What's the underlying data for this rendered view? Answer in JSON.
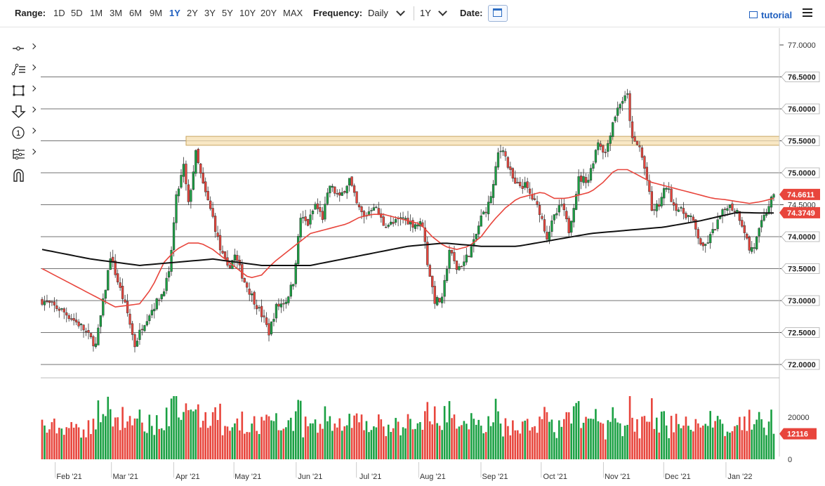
{
  "toolbar": {
    "range_label": "Range:",
    "ranges": [
      "1D",
      "5D",
      "1M",
      "3M",
      "6M",
      "9M",
      "1Y",
      "2Y",
      "3Y",
      "5Y",
      "10Y",
      "20Y",
      "MAX"
    ],
    "active_range": "1Y",
    "frequency_label": "Frequency:",
    "frequency_value": "Daily",
    "period_value": "1Y",
    "date_label": "Date:",
    "tutorial_label": "tutorial"
  },
  "sidebar": {
    "tools": [
      "line-tool-icon",
      "list-tool-icon",
      "rectangle-tool-icon",
      "arrow-down-tool-icon",
      "number-marker-icon",
      "pattern-tool-icon",
      "magnet-icon"
    ],
    "number_marker": "1"
  },
  "colors": {
    "up": "#1aa043",
    "down": "#e8453c",
    "ma50": "#e8453c",
    "ma200": "#111111",
    "zone": "#f5dfb0",
    "zone_border": "#c8a561"
  },
  "chart_data": {
    "type": "candlestick",
    "frequency": "Daily",
    "y_ticks": [
      "77.0000",
      "76.5000",
      "76.0000",
      "75.5000",
      "75.0000",
      "74.5000",
      "74.0000",
      "73.5000",
      "73.0000",
      "72.5000",
      "72.0000"
    ],
    "ylim": [
      72.0,
      77.0
    ],
    "grid_levels": [
      76.5,
      76.0,
      75.5,
      75.0,
      74.5,
      74.0,
      73.5,
      73.0,
      72.5,
      72.0
    ],
    "bold_ticks": [
      "76.5000",
      "76.0000",
      "75.5000",
      "75.0000",
      "74.0000",
      "73.5000",
      "73.0000",
      "72.5000",
      "72.0000"
    ],
    "resistance_zone": [
      75.43,
      75.57
    ],
    "x_labels": [
      "Feb '21",
      "Mar '21",
      "Apr '21",
      "May '21",
      "Jun '21",
      "Jul '21",
      "Aug '21",
      "Sep '21",
      "Oct '21",
      "Nov '21",
      "Dec '21",
      "Jan '22"
    ],
    "x_label_days": [
      10,
      38,
      69,
      99,
      130,
      160,
      191,
      222,
      252,
      283,
      313,
      344
    ],
    "x_range_days": [
      0,
      365
    ],
    "last_price": "74.6611",
    "ma_value": "74.3749",
    "volume": {
      "ticks": [
        "20000",
        "0"
      ],
      "ylim": [
        0,
        32000
      ],
      "last": "12116"
    },
    "anchors": [
      [
        0,
        73.0
      ],
      [
        8,
        72.85
      ],
      [
        16,
        72.6
      ],
      [
        22,
        72.3
      ],
      [
        26,
        73.2
      ],
      [
        28,
        73.7
      ],
      [
        31,
        73.3
      ],
      [
        35,
        72.8
      ],
      [
        38,
        72.3
      ],
      [
        41,
        72.6
      ],
      [
        44,
        72.8
      ],
      [
        49,
        73.1
      ],
      [
        52,
        73.4
      ],
      [
        55,
        74.6
      ],
      [
        58,
        75.1
      ],
      [
        60,
        74.5
      ],
      [
        63,
        75.3
      ],
      [
        66,
        74.8
      ],
      [
        70,
        74.3
      ],
      [
        73,
        73.8
      ],
      [
        76,
        73.5
      ],
      [
        79,
        73.7
      ],
      [
        83,
        73.3
      ],
      [
        87,
        73.0
      ],
      [
        91,
        72.7
      ],
      [
        93,
        72.5
      ],
      [
        96,
        72.9
      ],
      [
        100,
        73.0
      ],
      [
        103,
        73.3
      ],
      [
        106,
        74.3
      ],
      [
        109,
        74.2
      ],
      [
        112,
        74.5
      ],
      [
        115,
        74.3
      ],
      [
        118,
        74.8
      ],
      [
        122,
        74.6
      ],
      [
        126,
        74.9
      ],
      [
        129,
        74.5
      ],
      [
        132,
        74.3
      ],
      [
        136,
        74.5
      ],
      [
        140,
        74.2
      ],
      [
        144,
        74.2
      ],
      [
        148,
        74.3
      ],
      [
        152,
        74.2
      ],
      [
        156,
        74.2
      ],
      [
        158,
        73.6
      ],
      [
        161,
        73.0
      ],
      [
        164,
        73.0
      ],
      [
        167,
        73.8
      ],
      [
        170,
        73.5
      ],
      [
        173,
        73.6
      ],
      [
        177,
        73.9
      ],
      [
        180,
        74.3
      ],
      [
        183,
        74.5
      ],
      [
        185,
        74.8
      ],
      [
        187,
        75.3
      ],
      [
        189,
        75.4
      ],
      [
        191,
        75.1
      ],
      [
        194,
        74.8
      ],
      [
        198,
        74.8
      ],
      [
        201,
        74.6
      ],
      [
        204,
        74.4
      ],
      [
        207,
        74.0
      ],
      [
        210,
        74.3
      ],
      [
        213,
        74.5
      ],
      [
        216,
        74.1
      ],
      [
        220,
        74.9
      ],
      [
        224,
        74.9
      ],
      [
        228,
        75.5
      ],
      [
        231,
        75.3
      ],
      [
        234,
        75.8
      ],
      [
        237,
        76.1
      ],
      [
        240,
        76.2
      ],
      [
        242,
        75.5
      ],
      [
        245,
        75.4
      ],
      [
        248,
        74.9
      ],
      [
        250,
        74.4
      ],
      [
        253,
        74.5
      ],
      [
        256,
        74.8
      ],
      [
        259,
        74.5
      ],
      [
        262,
        74.4
      ],
      [
        266,
        74.3
      ],
      [
        269,
        74.0
      ],
      [
        271,
        73.8
      ],
      [
        274,
        74.0
      ],
      [
        278,
        74.3
      ],
      [
        281,
        74.5
      ],
      [
        285,
        74.4
      ],
      [
        288,
        74.1
      ],
      [
        290,
        73.8
      ],
      [
        292,
        73.85
      ],
      [
        295,
        74.2
      ],
      [
        298,
        74.5
      ],
      [
        300,
        74.66
      ]
    ],
    "ma50": [
      [
        0,
        73.5
      ],
      [
        10,
        73.3
      ],
      [
        20,
        73.1
      ],
      [
        30,
        72.9
      ],
      [
        40,
        72.95
      ],
      [
        45,
        73.2
      ],
      [
        50,
        73.6
      ],
      [
        55,
        73.8
      ],
      [
        60,
        73.9
      ],
      [
        65,
        73.9
      ],
      [
        70,
        73.8
      ],
      [
        75,
        73.65
      ],
      [
        80,
        73.5
      ],
      [
        85,
        73.35
      ],
      [
        90,
        73.4
      ],
      [
        95,
        73.6
      ],
      [
        100,
        73.75
      ],
      [
        105,
        73.9
      ],
      [
        110,
        74.05
      ],
      [
        115,
        74.1
      ],
      [
        120,
        74.15
      ],
      [
        125,
        74.2
      ],
      [
        130,
        74.3
      ],
      [
        135,
        74.35
      ],
      [
        140,
        74.35
      ],
      [
        145,
        74.3
      ],
      [
        150,
        74.25
      ],
      [
        155,
        74.2
      ],
      [
        160,
        74.0
      ],
      [
        165,
        73.85
      ],
      [
        170,
        73.8
      ],
      [
        175,
        73.85
      ],
      [
        180,
        74.0
      ],
      [
        185,
        74.25
      ],
      [
        190,
        74.45
      ],
      [
        195,
        74.6
      ],
      [
        200,
        74.65
      ],
      [
        205,
        74.7
      ],
      [
        210,
        74.6
      ],
      [
        215,
        74.6
      ],
      [
        220,
        74.65
      ],
      [
        225,
        74.7
      ],
      [
        230,
        74.85
      ],
      [
        235,
        75.05
      ],
      [
        240,
        75.05
      ],
      [
        245,
        74.95
      ],
      [
        250,
        74.85
      ],
      [
        255,
        74.8
      ],
      [
        260,
        74.75
      ],
      [
        265,
        74.7
      ],
      [
        270,
        74.65
      ],
      [
        275,
        74.6
      ],
      [
        280,
        74.58
      ],
      [
        285,
        74.55
      ],
      [
        290,
        74.52
      ],
      [
        295,
        74.55
      ],
      [
        300,
        74.6
      ]
    ],
    "ma200": [
      [
        0,
        73.8
      ],
      [
        20,
        73.65
      ],
      [
        40,
        73.55
      ],
      [
        55,
        73.6
      ],
      [
        70,
        73.65
      ],
      [
        90,
        73.55
      ],
      [
        110,
        73.55
      ],
      [
        130,
        73.7
      ],
      [
        150,
        73.85
      ],
      [
        165,
        73.9
      ],
      [
        180,
        73.85
      ],
      [
        195,
        73.85
      ],
      [
        210,
        73.95
      ],
      [
        225,
        74.05
      ],
      [
        240,
        74.1
      ],
      [
        255,
        74.15
      ],
      [
        270,
        74.25
      ],
      [
        285,
        74.38
      ],
      [
        295,
        74.37
      ],
      [
        300,
        74.37
      ]
    ]
  }
}
